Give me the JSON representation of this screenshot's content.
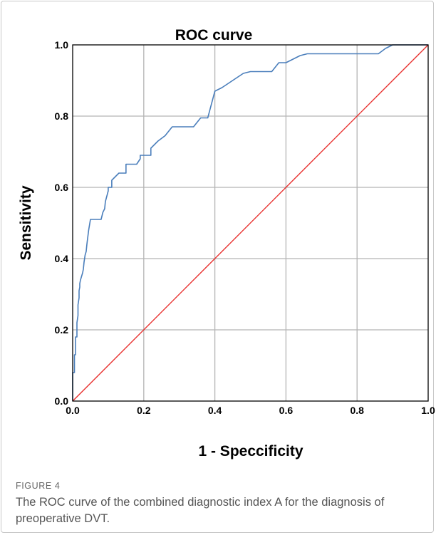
{
  "figure": {
    "label": "FIGURE 4",
    "caption": "The ROC curve of the combined diagnostic index A for the diagnosis of preoperative DVT."
  },
  "chart_data": {
    "type": "line",
    "title": "ROC curve",
    "xlabel": "1 - Speccificity",
    "ylabel": "Sensitivity",
    "xlim": [
      0,
      1
    ],
    "ylim": [
      0,
      1
    ],
    "xticks": [
      "0.0",
      "0.2",
      "0.4",
      "0.6",
      "0.8",
      "1.0"
    ],
    "yticks": [
      "0.0",
      "0.2",
      "0.4",
      "0.6",
      "0.8",
      "1.0"
    ],
    "grid": true,
    "colors": {
      "roc": "#4a7ebb",
      "reference": "#e8302e",
      "grid": "#b4b4b4"
    },
    "series": [
      {
        "key": "roc",
        "x": [
          0,
          0,
          0.005,
          0.005,
          0.008,
          0.008,
          0.012,
          0.012,
          0.015,
          0.015,
          0.018,
          0.018,
          0.02,
          0.02,
          0.022,
          0.025,
          0.028,
          0.03,
          0.032,
          0.035,
          0.038,
          0.04,
          0.045,
          0.05,
          0.08,
          0.085,
          0.09,
          0.092,
          0.1,
          0.1,
          0.11,
          0.11,
          0.13,
          0.15,
          0.15,
          0.18,
          0.19,
          0.19,
          0.22,
          0.22,
          0.24,
          0.26,
          0.28,
          0.3,
          0.34,
          0.36,
          0.38,
          0.4,
          0.4,
          0.42,
          0.45,
          0.48,
          0.5,
          0.56,
          0.58,
          0.6,
          0.62,
          0.64,
          0.66,
          0.7,
          0.86,
          0.88,
          0.9,
          0.95,
          1.0
        ],
        "y": [
          0,
          0.08,
          0.08,
          0.13,
          0.13,
          0.18,
          0.18,
          0.22,
          0.24,
          0.27,
          0.29,
          0.31,
          0.32,
          0.33,
          0.34,
          0.35,
          0.36,
          0.37,
          0.39,
          0.41,
          0.42,
          0.44,
          0.48,
          0.51,
          0.51,
          0.53,
          0.54,
          0.56,
          0.59,
          0.6,
          0.6,
          0.62,
          0.64,
          0.64,
          0.665,
          0.665,
          0.68,
          0.69,
          0.69,
          0.71,
          0.73,
          0.745,
          0.77,
          0.77,
          0.77,
          0.795,
          0.795,
          0.87,
          0.87,
          0.88,
          0.9,
          0.92,
          0.925,
          0.925,
          0.95,
          0.95,
          0.96,
          0.97,
          0.975,
          0.975,
          0.975,
          0.99,
          1.0,
          1.0,
          1.0
        ]
      },
      {
        "key": "reference",
        "x": [
          0,
          1
        ],
        "y": [
          0,
          1
        ]
      }
    ]
  }
}
